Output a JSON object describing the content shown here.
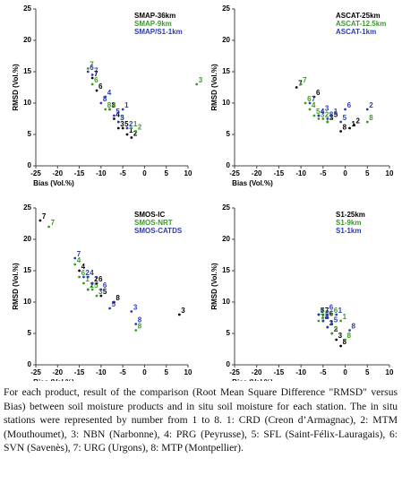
{
  "chart_data": [
    {
      "type": "scatter",
      "xlabel": "Bias (Vol.%)",
      "ylabel": "RMSD (Vol.%)",
      "xlim": [
        -25,
        10
      ],
      "ylim": [
        0,
        25
      ],
      "xticks": [
        -25,
        -20,
        -15,
        -10,
        -5,
        0,
        5,
        10
      ],
      "yticks": [
        0,
        5,
        10,
        15,
        20,
        25
      ],
      "legend": "upper right",
      "point_labels": [
        "1",
        "2",
        "3",
        "4",
        "5",
        "6",
        "7",
        "8"
      ],
      "series": [
        {
          "name": "SMAP-36km",
          "color": "#000000",
          "x": [
            -4,
            -3,
            -6,
            -7,
            -5,
            -11,
            -12,
            -8
          ],
          "y": [
            5,
            4.5,
            6,
            7.5,
            6,
            12,
            14,
            9
          ]
        },
        {
          "name": "SMAP-9km",
          "color": "#3a9a2a",
          "x": [
            -3,
            -2,
            12,
            -8,
            -6,
            -12,
            -13,
            -9
          ],
          "y": [
            6,
            5.5,
            13,
            9,
            7,
            13,
            15.5,
            9
          ]
        },
        {
          "name": "SMAP/S1-1km",
          "color": "#2a3ab8",
          "x": [
            -5,
            -4,
            -6,
            -9,
            -7,
            -13,
            -12,
            -10
          ],
          "y": [
            9,
            6,
            7,
            11,
            8,
            15,
            14.5,
            10
          ]
        }
      ]
    },
    {
      "type": "scatter",
      "xlabel": "Bias (Vol.%)",
      "ylabel": "RMSD (Vol.%)",
      "xlim": [
        -25,
        10
      ],
      "ylim": [
        0,
        25
      ],
      "xticks": [
        -25,
        -20,
        -15,
        -10,
        -5,
        0,
        5,
        10
      ],
      "yticks": [
        0,
        5,
        10,
        15,
        20,
        25
      ],
      "legend": "upper right",
      "point_labels": [
        "1",
        "2",
        "3",
        "4",
        "5",
        "6",
        "7",
        "8"
      ],
      "series": [
        {
          "name": "ASCAT-25km",
          "color": "#000000",
          "x": [
            1,
            2,
            -4,
            -6,
            -3,
            -7,
            -11,
            -1
          ],
          "y": [
            6,
            6.5,
            7,
            8,
            7.5,
            11,
            12.5,
            5.5
          ]
        },
        {
          "name": "ASCAT-12.5km",
          "color": "#3a9a2a",
          "x": [
            -4,
            -5,
            -6,
            -8,
            -7,
            -9,
            -10,
            5
          ],
          "y": [
            7,
            7.5,
            7.5,
            9,
            8,
            10,
            13,
            7
          ]
        },
        {
          "name": "ASCAT-1km",
          "color": "#2a3ab8",
          "x": [
            -3,
            5,
            -5,
            -6,
            -1,
            0,
            -8,
            -4
          ],
          "y": [
            8,
            9,
            8.5,
            8,
            7,
            9,
            10,
            7.5
          ]
        }
      ]
    },
    {
      "type": "scatter",
      "xlabel": "Bias (Vol.%)",
      "ylabel": "RMSD (Vol.%)",
      "xlim": [
        -25,
        10
      ],
      "ylim": [
        0,
        25
      ],
      "xticks": [
        -25,
        -20,
        -15,
        -10,
        -5,
        0,
        5,
        10
      ],
      "yticks": [
        0,
        5,
        10,
        15,
        20,
        25
      ],
      "legend": "upper right",
      "point_labels": [
        "1",
        "2",
        "3",
        "4",
        "5",
        "6",
        "7",
        "8"
      ],
      "series": [
        {
          "name": "SMOS-IC",
          "color": "#000000",
          "x": [
            -13,
            -12,
            8,
            -15,
            -10,
            -11,
            -24,
            -7
          ],
          "y": [
            12,
            13,
            8,
            15,
            11,
            13,
            23,
            10
          ]
        },
        {
          "name": "SMOS-NRT",
          "color": "#3a9a2a",
          "x": [
            -14,
            -13,
            -11,
            -16,
            -12,
            -15,
            -22,
            -2
          ],
          "y": [
            13,
            12,
            11,
            16,
            12,
            14,
            22,
            5.5
          ]
        },
        {
          "name": "SMOS-CATDS",
          "color": "#2a3ab8",
          "x": [
            -12,
            -14,
            -3,
            -13,
            -8,
            -10,
            -16,
            -2
          ],
          "y": [
            13,
            14,
            8.5,
            14,
            9,
            12,
            17,
            6.5
          ]
        }
      ]
    },
    {
      "type": "scatter",
      "xlabel": "Bias (Vol.%)",
      "ylabel": "RMSD (Vol.%)",
      "xlim": [
        -25,
        10
      ],
      "ylim": [
        0,
        25
      ],
      "xticks": [
        -25,
        -20,
        -15,
        -10,
        -5,
        0,
        5,
        10
      ],
      "yticks": [
        0,
        5,
        10,
        15,
        20,
        25
      ],
      "legend": "upper right",
      "point_labels": [
        "1",
        "2",
        "3",
        "4",
        "5",
        "6",
        "7",
        "8"
      ],
      "series": [
        {
          "name": "S1-25km",
          "color": "#000000",
          "x": [
            -4,
            -3,
            -2,
            -5,
            -6,
            -4,
            -5,
            -1
          ],
          "y": [
            6,
            5,
            4,
            7,
            8,
            7.5,
            8,
            3
          ]
        },
        {
          "name": "S1-9km",
          "color": "#3a9a2a",
          "x": [
            -1,
            -4,
            -3,
            -6,
            -5,
            -3,
            -6,
            0
          ],
          "y": [
            7,
            6,
            5,
            8,
            7.5,
            8,
            7,
            4
          ]
        },
        {
          "name": "S1-1km",
          "color": "#2a3ab8",
          "x": [
            -2,
            -5,
            -4,
            -5,
            -3,
            -4,
            -6,
            1
          ],
          "y": [
            8,
            7,
            6,
            7,
            6.5,
            8.5,
            8,
            5.5
          ]
        }
      ]
    }
  ],
  "caption": "For each product, result of the comparison (Root Mean Square Difference \"RMSD\" versus Bias) between soil moisture products and in situ soil moisture for each station. The in situ stations were represented by number from 1 to 8. 1: CRD (Creon d’Armagnac), 2: MTM (Mouthoumet), 3: NBN (Narbonne), 4: PRG (Peyrusse), 5: SFL (Saint-Félix-Lauragais), 6: SVN (Savenès), 7: URG (Urgons), 8: MTP (Montpellier)."
}
